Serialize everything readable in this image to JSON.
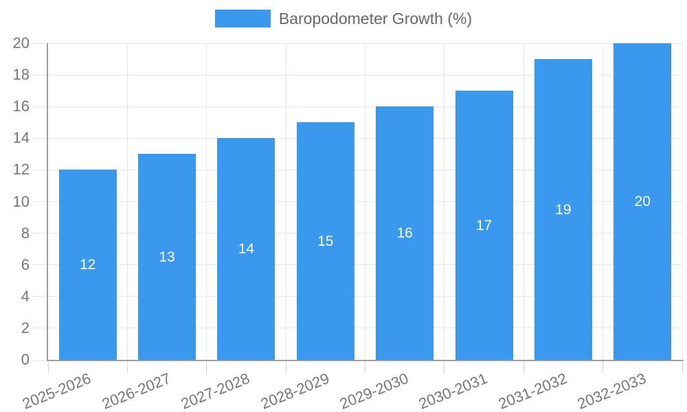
{
  "chart_data": {
    "type": "bar",
    "title": "Baropodometer Growth (%)",
    "legend_entries": [
      "Baropodometer Growth (%)"
    ],
    "legend_position": "top",
    "categories": [
      "2025-2026",
      "2026-2027",
      "2027-2028",
      "2028-2029",
      "2029-2030",
      "2030-2031",
      "2031-2032",
      "2032-2033"
    ],
    "values": [
      12,
      13,
      14,
      15,
      16,
      17,
      19,
      20
    ],
    "value_labels": [
      "12",
      "13",
      "14",
      "15",
      "16",
      "17",
      "19",
      "20"
    ],
    "xlabel": "",
    "ylabel": "",
    "ylim": [
      0,
      20
    ],
    "ytick_step": 2,
    "ytick_labels": [
      "0",
      "2",
      "4",
      "6",
      "8",
      "10",
      "12",
      "14",
      "16",
      "18",
      "20"
    ],
    "grid": true,
    "x_label_rotation_deg": -22,
    "colors": {
      "bar": "#3a99ec",
      "bar_value_text": "#ffffff",
      "axis_text": "#767676",
      "legend_text": "#666666",
      "grid_line": "#e6e6e6",
      "axis_line": "#9e9e9e",
      "outer_tick": "#d2d2d2",
      "background": "#ffffff"
    }
  }
}
